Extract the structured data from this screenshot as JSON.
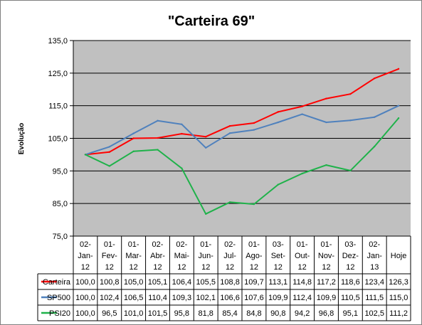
{
  "chart_data": {
    "type": "line",
    "title": "\"Carteira 69\"",
    "xlabel": "",
    "ylabel": "Evolução",
    "ylim": [
      75,
      135
    ],
    "yticks": [
      "75,0",
      "85,0",
      "95,0",
      "105,0",
      "115,0",
      "125,0",
      "135,0"
    ],
    "grid": true,
    "legend": "data-table",
    "categories": [
      [
        "02-",
        "Jan-",
        "12"
      ],
      [
        "01-",
        "Fev-",
        "12"
      ],
      [
        "01-",
        "Mar-",
        "12"
      ],
      [
        "02-",
        "Abr-",
        "12"
      ],
      [
        "02-",
        "Mai-",
        "12"
      ],
      [
        "01-",
        "Jun-",
        "12"
      ],
      [
        "02-",
        "Jul-",
        "12"
      ],
      [
        "01-",
        "Ago-",
        "12"
      ],
      [
        "03-",
        "Set-",
        "12"
      ],
      [
        "01-",
        "Out-",
        "12"
      ],
      [
        "01-",
        "Nov-",
        "12"
      ],
      [
        "03-",
        "Dez-",
        "12"
      ],
      [
        "02-",
        "Jan-",
        "13"
      ],
      [
        "Hoje"
      ]
    ],
    "series": [
      {
        "name": "Carteira",
        "color": "#ff0000",
        "values": [
          100.0,
          100.8,
          105.0,
          105.1,
          106.4,
          105.5,
          108.8,
          109.7,
          113.1,
          114.8,
          117.2,
          118.6,
          123.4,
          126.3
        ],
        "labels": [
          "100,0",
          "100,8",
          "105,0",
          "105,1",
          "106,4",
          "105,5",
          "108,8",
          "109,7",
          "113,1",
          "114,8",
          "117,2",
          "118,6",
          "123,4",
          "126,3"
        ]
      },
      {
        "name": "SP500",
        "color": "#4f81bd",
        "values": [
          100.0,
          102.4,
          106.5,
          110.4,
          109.3,
          102.1,
          106.6,
          107.6,
          109.9,
          112.4,
          109.9,
          110.5,
          111.5,
          115.0
        ],
        "labels": [
          "100,0",
          "102,4",
          "106,5",
          "110,4",
          "109,3",
          "102,1",
          "106,6",
          "107,6",
          "109,9",
          "112,4",
          "109,9",
          "110,5",
          "111,5",
          "115,0"
        ]
      },
      {
        "name": "PSI20",
        "color": "#1fb24a",
        "values": [
          100.0,
          96.5,
          101.0,
          101.5,
          95.8,
          81.8,
          85.4,
          84.8,
          90.8,
          94.2,
          96.8,
          95.1,
          102.5,
          111.2
        ],
        "labels": [
          "100,0",
          "96,5",
          "101,0",
          "101,5",
          "95,8",
          "81,8",
          "85,4",
          "84,8",
          "90,8",
          "94,2",
          "96,8",
          "95,1",
          "102,5",
          "111,2"
        ]
      }
    ]
  }
}
